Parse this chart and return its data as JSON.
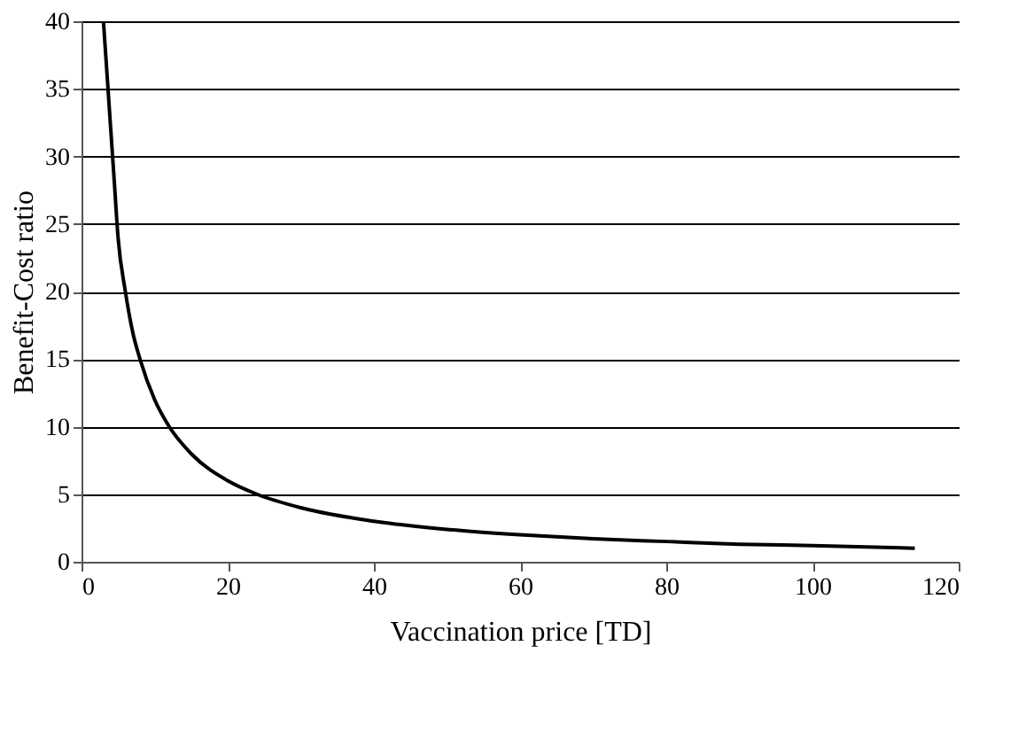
{
  "chart_data": {
    "type": "line",
    "xlabel": "Vaccination price [TD]",
    "ylabel": "Benefit-Cost ratio",
    "x": [
      3,
      3.5,
      4,
      4.5,
      5,
      6,
      7,
      8,
      10,
      12,
      15,
      20,
      24,
      30,
      40,
      50,
      60,
      70,
      80,
      90,
      100,
      114
    ],
    "series": [
      {
        "color": "#000000",
        "values": [
          40,
          36,
          32,
          28,
          24,
          20,
          17,
          15,
          12,
          10,
          8,
          6,
          5,
          4,
          3,
          2.4,
          2,
          1.7,
          1.5,
          1.3,
          1.2,
          1.0
        ]
      }
    ],
    "xlim": [
      0,
      120
    ],
    "xticks": [
      0,
      20,
      40,
      60,
      80,
      100,
      120
    ],
    "ylim": [
      0,
      40
    ],
    "yticks": [
      0,
      5,
      10,
      15,
      20,
      25,
      30,
      35,
      40
    ],
    "grid": "y",
    "marker": "none",
    "line_style": "solid"
  }
}
